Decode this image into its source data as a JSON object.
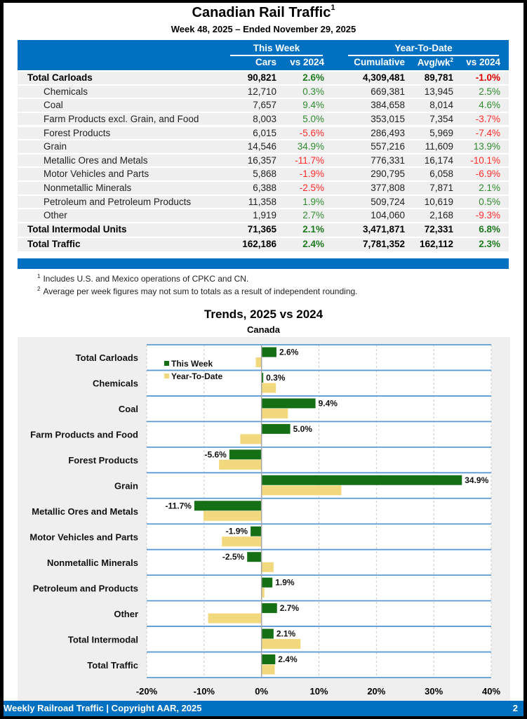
{
  "header": {
    "title": "Canadian Rail Traffic",
    "title_footnote": "1",
    "subtitle": "Week 48, 2025 – Ended November 29, 2025"
  },
  "table": {
    "group_headers": [
      "This Week",
      "Year-To-Date"
    ],
    "columns": [
      "Cars",
      "vs 2024",
      "Cumulative",
      "Avg/wk",
      "vs 2024"
    ],
    "avg_footnote": "2",
    "rows": [
      {
        "label": "Total Carloads",
        "type": "bold",
        "cars": "90,821",
        "vs_week": "2.6%",
        "cumulative": "4,309,481",
        "avg_wk": "89,781",
        "vs_ytd": "-1.0%"
      },
      {
        "label": "Chemicals",
        "type": "sub",
        "cars": "12,710",
        "vs_week": "0.3%",
        "cumulative": "669,381",
        "avg_wk": "13,945",
        "vs_ytd": "2.5%"
      },
      {
        "label": "Coal",
        "type": "sub",
        "cars": "7,657",
        "vs_week": "9.4%",
        "cumulative": "384,658",
        "avg_wk": "8,014",
        "vs_ytd": "4.6%"
      },
      {
        "label": "Farm Products excl. Grain, and Food",
        "type": "sub",
        "cars": "8,003",
        "vs_week": "5.0%",
        "cumulative": "353,015",
        "avg_wk": "7,354",
        "vs_ytd": "-3.7%"
      },
      {
        "label": "Forest Products",
        "type": "sub",
        "cars": "6,015",
        "vs_week": "-5.6%",
        "cumulative": "286,493",
        "avg_wk": "5,969",
        "vs_ytd": "-7.4%"
      },
      {
        "label": "Grain",
        "type": "sub",
        "cars": "14,546",
        "vs_week": "34.9%",
        "cumulative": "557,216",
        "avg_wk": "11,609",
        "vs_ytd": "13.9%"
      },
      {
        "label": "Metallic Ores and Metals",
        "type": "sub",
        "cars": "16,357",
        "vs_week": "-11.7%",
        "cumulative": "776,331",
        "avg_wk": "16,174",
        "vs_ytd": "-10.1%"
      },
      {
        "label": "Motor Vehicles and Parts",
        "type": "sub",
        "cars": "5,868",
        "vs_week": "-1.9%",
        "cumulative": "290,795",
        "avg_wk": "6,058",
        "vs_ytd": "-6.9%"
      },
      {
        "label": "Nonmetallic Minerals",
        "type": "sub",
        "cars": "6,388",
        "vs_week": "-2.5%",
        "cumulative": "377,808",
        "avg_wk": "7,871",
        "vs_ytd": "2.1%"
      },
      {
        "label": "Petroleum and Petroleum Products",
        "type": "sub",
        "cars": "11,358",
        "vs_week": "1.9%",
        "cumulative": "509,724",
        "avg_wk": "10,619",
        "vs_ytd": "0.5%"
      },
      {
        "label": "Other",
        "type": "sub",
        "cars": "1,919",
        "vs_week": "2.7%",
        "cumulative": "104,060",
        "avg_wk": "2,168",
        "vs_ytd": "-9.3%"
      },
      {
        "label": "Total Intermodal Units",
        "type": "total",
        "cars": "71,365",
        "vs_week": "2.1%",
        "cumulative": "3,471,871",
        "avg_wk": "72,331",
        "vs_ytd": "6.8%"
      },
      {
        "label": "Total Traffic",
        "type": "total",
        "cars": "162,186",
        "vs_week": "2.4%",
        "cumulative": "7,781,352",
        "avg_wk": "162,112",
        "vs_ytd": "2.3%"
      }
    ]
  },
  "notes": [
    {
      "mark": "1",
      "text": "Includes U.S. and Mexico operations of CPKC and CN."
    },
    {
      "mark": "2",
      "text": "Average per week figures may not sum to totals as a result of independent rounding."
    }
  ],
  "colors": {
    "brand_blue": "#0070C0",
    "this_week": "#157015",
    "ytd": "#F3D97D",
    "positive": "#2E8B2E",
    "negative": "#FF2B2B"
  },
  "chart_data": {
    "type": "bar",
    "orientation": "horizontal",
    "title": "Trends, 2025 vs 2024",
    "subtitle": "Canada",
    "categories": [
      "Total Carloads",
      "Chemicals",
      "Coal",
      "Farm Products and Food",
      "Forest Products",
      "Grain",
      "Metallic Ores and Metals",
      "Motor Vehicles and Parts",
      "Nonmetallic Minerals",
      "Petroleum and Products",
      "Other",
      "Total Intermodal",
      "Total Traffic"
    ],
    "series": [
      {
        "name": "This Week",
        "values": [
          2.6,
          0.3,
          9.4,
          5.0,
          -5.6,
          34.9,
          -11.7,
          -1.9,
          -2.5,
          1.9,
          2.7,
          2.1,
          2.4
        ],
        "labels": [
          "2.6%",
          "0.3%",
          "9.4%",
          "5.0%",
          "-5.6%",
          "34.9%",
          "-11.7%",
          "-1.9%",
          "-2.5%",
          "1.9%",
          "2.7%",
          "2.1%",
          "2.4%"
        ]
      },
      {
        "name": "Year-To-Date",
        "values": [
          -1.0,
          2.5,
          4.6,
          -3.7,
          -7.4,
          13.9,
          -10.1,
          -6.9,
          2.1,
          0.5,
          -9.3,
          6.8,
          2.3
        ]
      }
    ],
    "xlabel": "",
    "ylabel": "",
    "xlim": [
      -20,
      40
    ],
    "xticks": [
      "-20%",
      "-10%",
      "0%",
      "10%",
      "20%",
      "30%",
      "40%"
    ],
    "xtick_values": [
      -20,
      -10,
      0,
      10,
      20,
      30,
      40
    ],
    "grid": true,
    "legend": "top-left"
  },
  "footer": {
    "left": "Weekly Railroad Traffic | Copyright AAR, 2025",
    "page": "2"
  }
}
